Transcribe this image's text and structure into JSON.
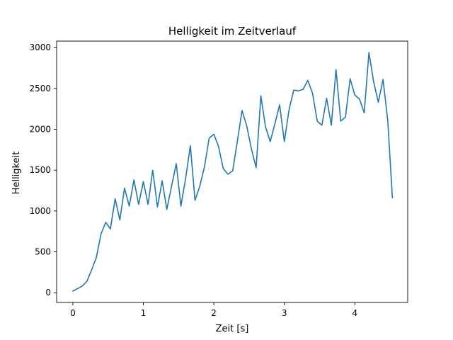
{
  "chart_data": {
    "type": "line",
    "title": "Helligkeit im Zeitverlauf",
    "xlabel": "Zeit [s]",
    "ylabel": "Helligkeit",
    "xlim": [
      -0.23,
      4.75
    ],
    "ylim": [
      -120,
      3080
    ],
    "xticks": [
      0,
      1,
      2,
      3,
      4
    ],
    "xtick_labels": [
      "0",
      "1",
      "2",
      "3",
      "4"
    ],
    "yticks": [
      0,
      500,
      1000,
      1500,
      2000,
      2500,
      3000
    ],
    "ytick_labels": [
      "0",
      "500",
      "1000",
      "1500",
      "2000",
      "2500",
      "3000"
    ],
    "grid": false,
    "series": [
      {
        "color": "#1f77b4",
        "x": [
          0.0,
          0.067,
          0.133,
          0.2,
          0.267,
          0.333,
          0.4,
          0.467,
          0.533,
          0.6,
          0.667,
          0.733,
          0.8,
          0.867,
          0.933,
          1.0,
          1.067,
          1.133,
          1.2,
          1.267,
          1.333,
          1.4,
          1.467,
          1.533,
          1.6,
          1.667,
          1.733,
          1.8,
          1.867,
          1.933,
          2.0,
          2.067,
          2.133,
          2.2,
          2.267,
          2.333,
          2.4,
          2.467,
          2.533,
          2.6,
          2.667,
          2.733,
          2.8,
          2.867,
          2.933,
          3.0,
          3.067,
          3.133,
          3.2,
          3.267,
          3.333,
          3.4,
          3.467,
          3.533,
          3.6,
          3.667,
          3.733,
          3.8,
          3.867,
          3.933,
          4.0,
          4.067,
          4.133,
          4.2,
          4.267,
          4.333,
          4.4,
          4.467,
          4.533
        ],
        "y": [
          20,
          50,
          80,
          140,
          280,
          430,
          720,
          860,
          780,
          1150,
          890,
          1280,
          1060,
          1380,
          1080,
          1360,
          1080,
          1500,
          1050,
          1370,
          1020,
          1300,
          1580,
          1060,
          1400,
          1800,
          1130,
          1300,
          1540,
          1890,
          1940,
          1790,
          1520,
          1450,
          1490,
          1850,
          2230,
          2040,
          1760,
          1530,
          2410,
          2030,
          1850,
          2070,
          2300,
          1850,
          2240,
          2480,
          2470,
          2490,
          2600,
          2440,
          2100,
          2050,
          2380,
          2050,
          2730,
          2100,
          2150,
          2620,
          2420,
          2370,
          2200,
          2940,
          2580,
          2330,
          2610,
          2110,
          1160
        ]
      }
    ]
  }
}
